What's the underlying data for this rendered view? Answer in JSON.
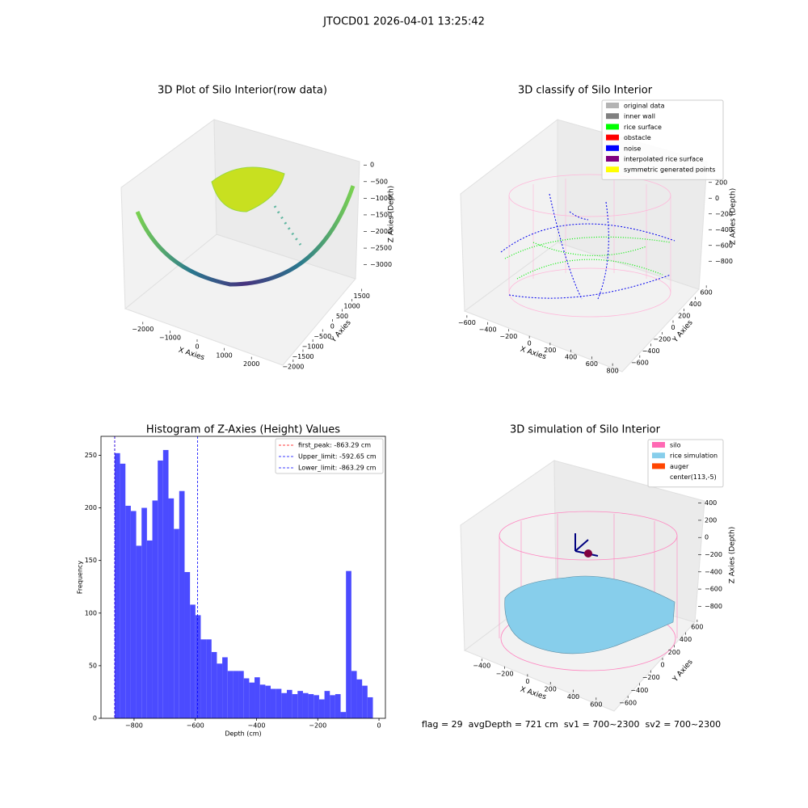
{
  "title": "JTOCD01 2026-04-01 13:25:42",
  "footer": "flag = 29  avgDepth = 721 cm  sv1 = 700~2300  sv2 = 700~2300",
  "chart_data": [
    {
      "type": "scatter3d",
      "title": "3D Plot of Silo Interior(row data)",
      "xlabel": "X Axies",
      "ylabel": "Y Axies",
      "zlabel": "Z Axies (Depth)",
      "xlim": [
        -2500,
        2500
      ],
      "xticks": [
        {
          "value": -2000,
          "label": "−2000"
        },
        {
          "value": -1000,
          "label": "−1000"
        },
        0,
        1000,
        2000
      ],
      "ylim": [
        -2200,
        1800
      ],
      "yticks": [
        {
          "value": -2000,
          "label": "−2000"
        },
        {
          "value": -1500,
          "label": "−1500"
        },
        {
          "value": -1000,
          "label": "−1000"
        },
        {
          "value": -500,
          "label": "−500"
        },
        0,
        500,
        1000,
        1500
      ],
      "zlim": [
        -3300,
        200
      ],
      "zticks": [
        0,
        {
          "value": -500,
          "label": "−500"
        },
        {
          "value": -1000,
          "label": "−1000"
        },
        {
          "value": -1500,
          "label": "−1500"
        },
        {
          "value": -2000,
          "label": "−2000"
        },
        {
          "value": -2500,
          "label": "−2500"
        },
        {
          "value": -3000,
          "label": "−3000"
        }
      ]
    },
    {
      "type": "scatter3d",
      "title": "3D classify of Silo Interior",
      "xlabel": "X Axies",
      "ylabel": "Y Axies",
      "zlabel": "Z Axies (Depth)",
      "xlim": [
        -700,
        900
      ],
      "xticks": [
        {
          "value": -600,
          "label": "−600"
        },
        {
          "value": -400,
          "label": "−400"
        },
        {
          "value": -200,
          "label": "−200"
        },
        0,
        200,
        400,
        600,
        800
      ],
      "ylim": [
        -700,
        700
      ],
      "yticks": [
        {
          "value": -600,
          "label": "−600"
        },
        {
          "value": -400,
          "label": "−400"
        },
        {
          "value": -200,
          "label": "−200"
        },
        0,
        200,
        400,
        600
      ],
      "zlim": [
        -900,
        300
      ],
      "zticks": [
        200,
        0,
        {
          "value": -200,
          "label": "−200"
        },
        {
          "value": -400,
          "label": "−400"
        },
        {
          "value": -600,
          "label": "−600"
        },
        {
          "value": -800,
          "label": "−800"
        }
      ],
      "legend": [
        {
          "name": "original data",
          "color": "#b3b3b3"
        },
        {
          "name": "inner wall",
          "color": "#808080"
        },
        {
          "name": "rice surface",
          "color": "#00ff00"
        },
        {
          "name": "obstacle",
          "color": "#ff0000"
        },
        {
          "name": "noise",
          "color": "#0000ff"
        },
        {
          "name": "interpolated rice surface",
          "color": "#800080"
        },
        {
          "name": "symmetric generated points",
          "color": "#ffff00"
        }
      ]
    },
    {
      "type": "histogram",
      "title": "Histogram of Z-Axies (Height) Values",
      "xlabel": "Depth (cm)",
      "ylabel": "Frequency",
      "color": "#4b4bff",
      "bins": [
        -863.3,
        -845.7,
        -828.2,
        -810.6,
        -793.0,
        -775.5,
        -757.9,
        -740.3,
        -722.7,
        -705.2,
        -687.6,
        -670.0,
        -652.5,
        -634.9,
        -617.3,
        -599.7,
        -582.2,
        -564.6,
        -547.0,
        -529.5,
        -511.9,
        -494.3,
        -476.8,
        -459.2,
        -441.6,
        -424.0,
        -406.5,
        -388.9,
        -371.3,
        -353.8,
        -336.2,
        -318.6,
        -301.0,
        -283.5,
        -265.9,
        -248.3,
        -230.8,
        -213.2,
        -195.6,
        -178.1,
        -160.5,
        -142.9,
        -125.3,
        -107.8,
        -90.2,
        -72.6,
        -55.1,
        -37.5,
        -19.9
      ],
      "values": [
        252,
        242,
        202,
        197,
        164,
        200,
        169,
        207,
        245,
        255,
        209,
        180,
        216,
        139,
        108,
        98,
        75,
        75,
        63,
        52,
        58,
        45,
        45,
        45,
        38,
        34,
        39,
        32,
        31,
        28,
        28,
        24,
        27,
        23,
        26,
        24,
        23,
        22,
        18,
        26,
        22,
        23,
        6,
        140,
        45,
        37,
        31,
        20
      ],
      "xlim": [
        -908,
        21
      ],
      "xticks": [
        {
          "value": -800,
          "label": "−800"
        },
        {
          "value": -600,
          "label": "−600"
        },
        {
          "value": -400,
          "label": "−400"
        },
        {
          "value": -200,
          "label": "−200"
        },
        0
      ],
      "ylim": [
        0,
        268
      ],
      "yticks": [
        0,
        50,
        100,
        150,
        200,
        250
      ],
      "lines": [
        {
          "name": "first_peak: -863.29 cm",
          "color": "#ff0000",
          "value": -863.29
        },
        {
          "name": "Upper_limit: -592.65 cm",
          "color": "#0000ff",
          "value": -592.65
        },
        {
          "name": "Lower_limit: -863.29 cm",
          "color": "#0000ff",
          "value": -863.29
        }
      ]
    },
    {
      "type": "surface3d",
      "title": "3D simulation of Silo Interior",
      "xlabel": "X Axies",
      "ylabel": "Y Axies",
      "zlabel": "Z Axies (Depth)",
      "xlim": [
        -550,
        700
      ],
      "xticks": [
        {
          "value": -400,
          "label": "−400"
        },
        {
          "value": -200,
          "label": "−200"
        },
        0,
        200,
        400,
        600
      ],
      "ylim": [
        -700,
        700
      ],
      "yticks": [
        {
          "value": -600,
          "label": "−600"
        },
        {
          "value": -400,
          "label": "−400"
        },
        {
          "value": -200,
          "label": "−200"
        },
        0,
        200,
        400,
        600
      ],
      "zlim": [
        -900,
        500
      ],
      "zticks": [
        400,
        200,
        0,
        {
          "value": -200,
          "label": "−200"
        },
        {
          "value": -400,
          "label": "−400"
        },
        {
          "value": -600,
          "label": "−600"
        },
        {
          "value": -800,
          "label": "−800"
        }
      ],
      "legend": [
        {
          "name": "silo",
          "color": "#ff69b4"
        },
        {
          "name": "rice simulation",
          "color": "#87ceeb"
        },
        {
          "name": "auger",
          "color": "#ff4500"
        },
        {
          "name": "center(113,-5)"
        }
      ]
    }
  ]
}
